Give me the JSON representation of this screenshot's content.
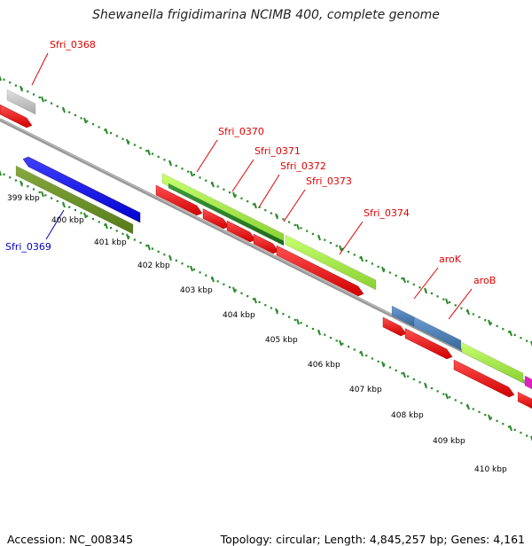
{
  "title": "Shewanella frigidimarina NCIMB 400, complete genome",
  "accession": "Accession: NC_008345",
  "topology": "Topology: circular; Length: 4,845,257 bp; Genes: 4,161",
  "gene_labels": [
    {
      "id": "Sfri_0368",
      "color": "#e00000"
    },
    {
      "id": "Sfri_0369",
      "color": "#0000c0"
    },
    {
      "id": "Sfri_0370",
      "color": "#e00000"
    },
    {
      "id": "Sfri_0371",
      "color": "#e00000"
    },
    {
      "id": "Sfri_0372",
      "color": "#e00000"
    },
    {
      "id": "Sfri_0373",
      "color": "#e00000"
    },
    {
      "id": "Sfri_0374",
      "color": "#e00000"
    },
    {
      "id": "aroK",
      "color": "#e00000"
    },
    {
      "id": "aroB",
      "color": "#e00000"
    }
  ],
  "kbp_ticks": [
    "399 kbp",
    "400 kbp",
    "401 kbp",
    "402 kbp",
    "403 kbp",
    "404 kbp",
    "405 kbp",
    "406 kbp",
    "407 kbp",
    "408 kbp",
    "409 kbp",
    "410 kbp"
  ],
  "colors": {
    "cds_red": "#ff0000",
    "gene_green": "#a8f050",
    "rna_blue": "#1010ff",
    "olive": "#6b8c23",
    "steel_blue": "#4a7fb5",
    "grey": "#c8c8c8",
    "magenta": "#e020c0",
    "backbone": "#888888",
    "tick_green": "#2a8a2a"
  }
}
